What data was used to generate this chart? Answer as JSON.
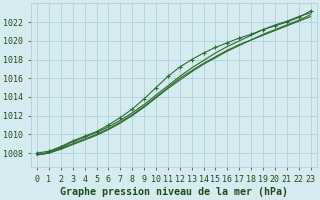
{
  "xlabel": "Graphe pression niveau de la mer (hPa)",
  "x_ticks": [
    0,
    1,
    2,
    3,
    4,
    5,
    6,
    7,
    8,
    9,
    10,
    11,
    12,
    13,
    14,
    15,
    16,
    17,
    18,
    19,
    20,
    21,
    22,
    23
  ],
  "y_ticks": [
    1008,
    1010,
    1012,
    1014,
    1016,
    1018,
    1020,
    1022
  ],
  "ylim": [
    1006.5,
    1024.0
  ],
  "xlim": [
    -0.5,
    23.5
  ],
  "bg_color": "#d4ecf0",
  "grid_color": "#a8ccd4",
  "line_color": "#2d6a2d",
  "text_color": "#1a4d1a",
  "tick_labelsize": 6.0,
  "xlabel_fontsize": 7.2,
  "series": [
    [
      1008.0,
      1008.2,
      1008.7,
      1009.3,
      1009.8,
      1010.3,
      1011.0,
      1011.8,
      1012.7,
      1013.8,
      1015.0,
      1016.2,
      1017.2,
      1018.0,
      1018.7,
      1019.3,
      1019.8,
      1020.3,
      1020.7,
      1021.2,
      1021.6,
      1022.0,
      1022.5,
      1023.2
    ],
    [
      1007.8,
      1008.0,
      1008.5,
      1009.0,
      1009.5,
      1010.0,
      1010.6,
      1011.3,
      1012.1,
      1013.0,
      1014.0,
      1015.0,
      1016.0,
      1016.8,
      1017.6,
      1018.3,
      1019.0,
      1019.6,
      1020.1,
      1020.7,
      1021.2,
      1021.7,
      1022.2,
      1022.8
    ],
    [
      1007.8,
      1008.0,
      1008.4,
      1008.9,
      1009.4,
      1009.9,
      1010.5,
      1011.2,
      1012.0,
      1012.9,
      1013.9,
      1014.9,
      1015.8,
      1016.7,
      1017.5,
      1018.2,
      1018.9,
      1019.5,
      1020.1,
      1020.6,
      1021.1,
      1021.6,
      1022.1,
      1022.6
    ],
    [
      1007.8,
      1008.1,
      1008.6,
      1009.2,
      1009.7,
      1010.2,
      1010.8,
      1011.5,
      1012.3,
      1013.2,
      1014.2,
      1015.2,
      1016.2,
      1017.1,
      1017.9,
      1018.7,
      1019.4,
      1020.0,
      1020.6,
      1021.2,
      1021.7,
      1022.1,
      1022.6,
      1023.0
    ]
  ],
  "marker_series_indices": [
    0,
    1,
    2,
    3
  ],
  "has_markers": [
    true,
    false,
    false,
    false
  ]
}
